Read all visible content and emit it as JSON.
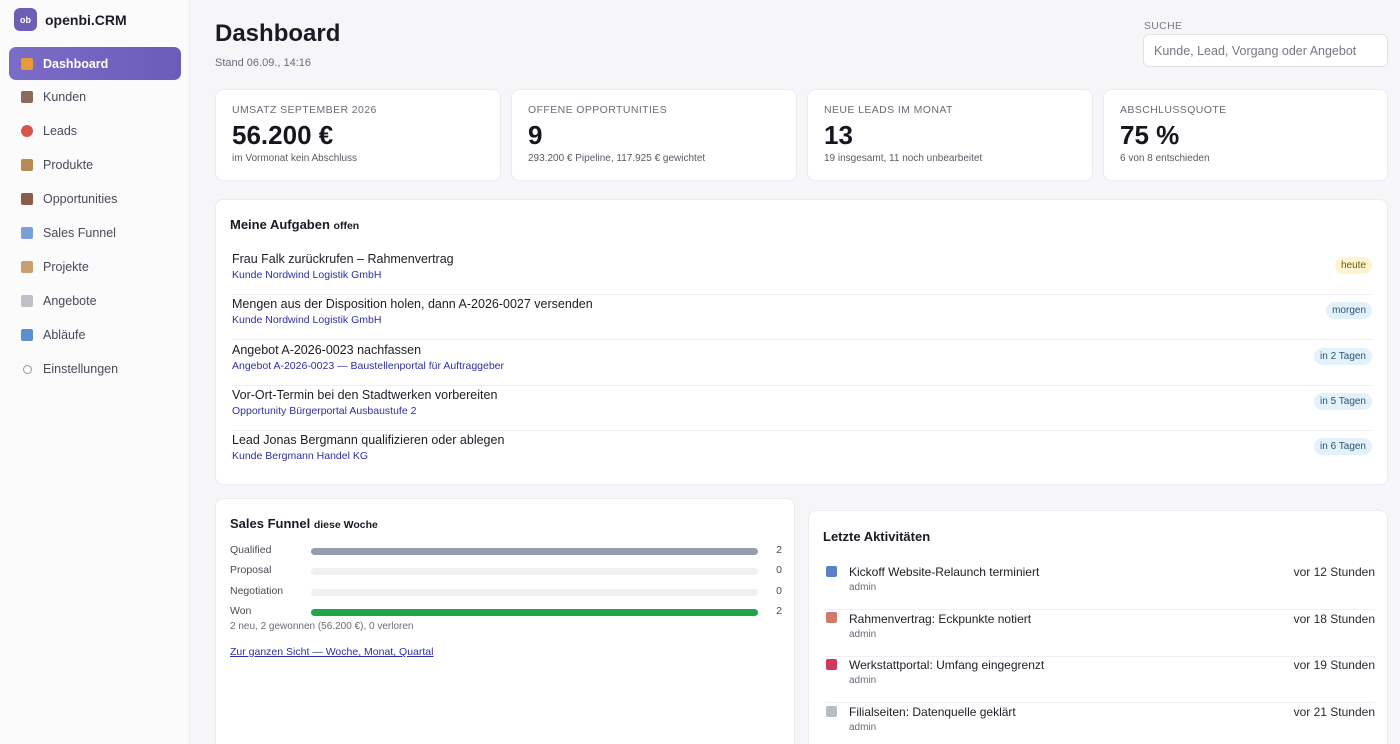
{
  "app": {
    "logo": "ob",
    "name": "openbi.CRM"
  },
  "sidebar": {
    "items": [
      {
        "label": "Dashboard",
        "icon": "chart-icon",
        "color": "#e89a3a",
        "active": true
      },
      {
        "label": "Kunden",
        "icon": "users-icon",
        "color": "#8a6a5a"
      },
      {
        "label": "Leads",
        "icon": "target-icon",
        "color": "#d8554a"
      },
      {
        "label": "Produkte",
        "icon": "box-icon",
        "color": "#b88a55"
      },
      {
        "label": "Opportunities",
        "icon": "briefcase-icon",
        "color": "#8a5a4a"
      },
      {
        "label": "Sales Funnel",
        "icon": "trend-icon",
        "color": "#7aa0d8"
      },
      {
        "label": "Projekte",
        "icon": "clipboard-icon",
        "color": "#c8a070"
      },
      {
        "label": "Angebote",
        "icon": "document-icon",
        "color": "#c0c0c8"
      },
      {
        "label": "Abläufe",
        "icon": "refresh-icon",
        "color": "#5a90d0"
      },
      {
        "label": "Einstellungen",
        "icon": "gear-icon",
        "color": "#9a9aa6"
      }
    ]
  },
  "header": {
    "title": "Dashboard",
    "subtitle": "Stand 06.09., 14:16",
    "search_label": "SUCHE",
    "search_placeholder": "Kunde, Lead, Vorgang oder Angebot",
    "search_value": ""
  },
  "kpis": [
    {
      "label": "UMSATZ SEPTEMBER 2026",
      "value": "56.200 €",
      "note": "im Vormonat kein Abschluss"
    },
    {
      "label": "OFFENE OPPORTUNITIES",
      "value": "9",
      "note": "293.200 € Pipeline, 117.925 € gewichtet"
    },
    {
      "label": "NEUE LEADS IM MONAT",
      "value": "13",
      "note": "19 insgesamt, 11 noch unbearbeitet"
    },
    {
      "label": "ABSCHLUSSQUOTE",
      "value": "75 %",
      "note": "6 von 8 entschieden"
    }
  ],
  "tasks": {
    "title": "Meine Aufgaben",
    "suffix": "offen",
    "items": [
      {
        "title": "Frau Falk zurückrufen – Rahmenvertrag",
        "link": "Kunde Nordwind Logistik GmbH",
        "due": "heute",
        "due_kind": "today"
      },
      {
        "title": "Mengen aus der Disposition holen, dann A-2026-0027 versenden",
        "link": "Kunde Nordwind Logistik GmbH",
        "due": "morgen",
        "due_kind": "soon"
      },
      {
        "title": "Angebot A-2026-0023 nachfassen",
        "link": "Angebot A-2026-0023 — Baustellenportal für Auftraggeber",
        "due": "in 2 Tagen",
        "due_kind": "soon"
      },
      {
        "title": "Vor-Ort-Termin bei den Stadtwerken vorbereiten",
        "link": "Opportunity Bürgerportal Ausbaustufe 2",
        "due": "in 5 Tagen",
        "due_kind": "soon"
      },
      {
        "title": "Lead Jonas Bergmann qualifizieren oder ablegen",
        "link": "Kunde Bergmann Handel KG",
        "due": "in 6 Tagen",
        "due_kind": "soon"
      }
    ]
  },
  "funnel": {
    "title": "Sales Funnel",
    "suffix": "diese Woche",
    "max": 2,
    "stages": [
      {
        "label": "Qualified",
        "count": 2,
        "color": "#959cb0"
      },
      {
        "label": "Proposal",
        "count": 0,
        "color": "#959cb0"
      },
      {
        "label": "Negotiation",
        "count": 0,
        "color": "#959cb0"
      },
      {
        "label": "Won",
        "count": 2,
        "color": "#1fa64a"
      }
    ],
    "summary": "2 neu, 2 gewonnen (56.200 €), 0 verloren",
    "link": "Zur ganzen Sicht — Woche, Monat, Quartal"
  },
  "activities": {
    "title": "Letzte Aktivitäten",
    "items": [
      {
        "title": "Kickoff Website-Relaunch terminiert",
        "user": "admin",
        "time": "vor 12 Stunden",
        "icon": "calendar-icon",
        "color": "#5a80c8"
      },
      {
        "title": "Rahmenvertrag: Eckpunkte notiert",
        "user": "admin",
        "time": "vor 18 Stunden",
        "icon": "memo-icon",
        "color": "#d07a6a"
      },
      {
        "title": "Werkstattportal: Umfang eingegrenzt",
        "user": "admin",
        "time": "vor 19 Stunden",
        "icon": "phone-icon",
        "color": "#d03a5a"
      },
      {
        "title": "Filialseiten: Datenquelle geklärt",
        "user": "admin",
        "time": "vor 21 Stunden",
        "icon": "mail-icon",
        "color": "#b8bcc8"
      }
    ]
  }
}
